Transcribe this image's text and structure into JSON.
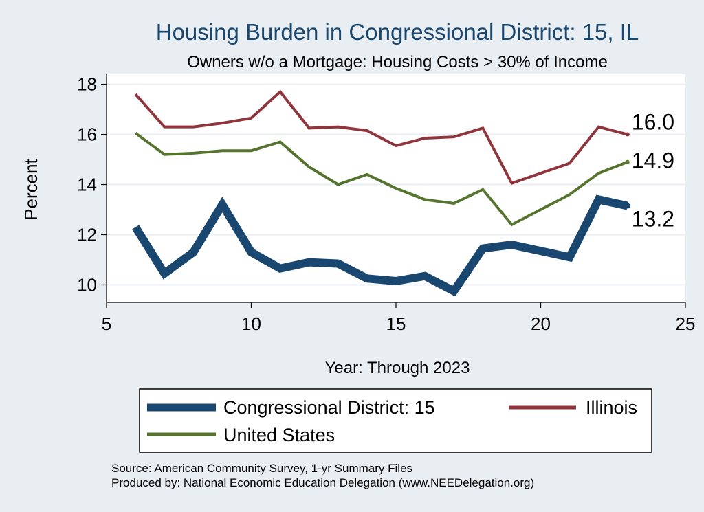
{
  "chart_data": {
    "type": "line",
    "title": "Housing Burden in Congressional District:  15, IL",
    "subtitle": "Owners w/o a Mortgage: Housing Costs > 30% of Income",
    "xlabel": "Year: Through 2023",
    "ylabel": "Percent",
    "xlim": [
      5,
      25
    ],
    "ylim": [
      9.3,
      18.4
    ],
    "xticks": [
      "5",
      "10",
      "15",
      "20",
      "25"
    ],
    "yticks": [
      "10",
      "12",
      "14",
      "16",
      "18"
    ],
    "grid": true,
    "legend_position": "bottom",
    "series": [
      {
        "name": "Congressional District:  15",
        "color": "#1a476f",
        "end_label": "13.2",
        "x": [
          6,
          7,
          8,
          9,
          10,
          11,
          12,
          13,
          14,
          15,
          16,
          17,
          18,
          19,
          21,
          22,
          23
        ],
        "y": [
          12.3,
          10.45,
          11.3,
          13.2,
          11.3,
          10.65,
          10.9,
          10.85,
          10.25,
          10.15,
          10.35,
          9.75,
          11.45,
          11.6,
          11.1,
          13.4,
          13.15
        ]
      },
      {
        "name": "Illinois",
        "color": "#90353b",
        "end_label": "16.0",
        "x": [
          6,
          7,
          8,
          9,
          10,
          11,
          12,
          13,
          14,
          15,
          16,
          17,
          18,
          19,
          21,
          22,
          23
        ],
        "y": [
          17.6,
          16.3,
          16.3,
          16.45,
          16.65,
          17.7,
          16.25,
          16.3,
          16.15,
          15.55,
          15.85,
          15.9,
          16.25,
          14.05,
          14.85,
          16.3,
          16.0
        ]
      },
      {
        "name": "United States",
        "color": "#55752f",
        "end_label": "14.9",
        "x": [
          6,
          7,
          8,
          9,
          10,
          11,
          12,
          13,
          14,
          15,
          16,
          17,
          18,
          19,
          21,
          22,
          23
        ],
        "y": [
          16.05,
          15.2,
          15.25,
          15.35,
          15.35,
          15.7,
          14.7,
          14.0,
          14.4,
          13.85,
          13.4,
          13.25,
          13.8,
          12.4,
          13.6,
          14.45,
          14.9
        ]
      }
    ],
    "source_lines": [
      "Source: American Community Survey, 1-yr Summary Files",
      "Produced by: National Economic Education Delegation (www.NEEDelegation.org)"
    ]
  }
}
